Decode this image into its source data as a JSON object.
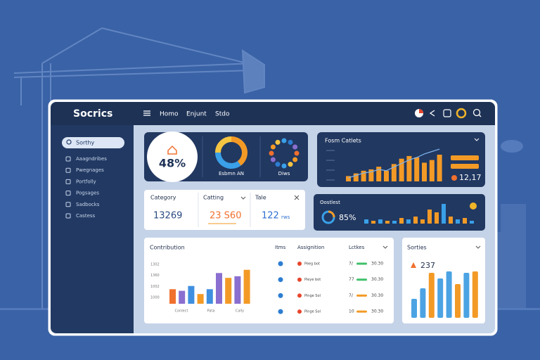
{
  "header": {
    "brand": "Socrics",
    "nav": [
      "Homo",
      "Enjunt",
      "Stdo"
    ]
  },
  "sidebar": {
    "search": "Sorthy",
    "items": [
      "Aaagndribes",
      "Pwegnages",
      "Portfolly",
      "Pogsages",
      "Sadbocks",
      "Castess"
    ]
  },
  "kpi_card": {
    "percent": "48%",
    "donut_label": "Esbmn AN",
    "donut": [
      40,
      35,
      25
    ],
    "ring_label": "Diws"
  },
  "forecast_card": {
    "title": "Fosm Catlets",
    "total": "12,17",
    "bars": [
      8,
      12,
      16,
      18,
      22,
      16,
      26,
      34,
      38,
      36,
      28,
      32,
      40
    ],
    "line": [
      6,
      10,
      14,
      16,
      20,
      18,
      24,
      30,
      36,
      40,
      46,
      50,
      54
    ]
  },
  "stats_card": {
    "columns": [
      {
        "label": "Category",
        "value": "13269"
      },
      {
        "label": "Catting",
        "value": "23 S60"
      },
      {
        "label": "Tale",
        "value": "122",
        "unit": "rws"
      }
    ]
  },
  "overview_card": {
    "title": "Oostlest",
    "percent": "85%",
    "bars": [
      6,
      4,
      6,
      4,
      4,
      8,
      6,
      10,
      6,
      20,
      16,
      28,
      10,
      6,
      8,
      4
    ],
    "colors": [
      "#3aa0e8",
      "#f39a26",
      "#3aa0e8",
      "#f39a26",
      "#3aa0e8",
      "#f39a26",
      "#3aa0e8",
      "#f39a26",
      "#f39a26",
      "#f39a26",
      "#f39a26",
      "#3aa0e8",
      "#f39a26",
      "#3aa0e8",
      "#f39a26",
      "#3aa0e8"
    ]
  },
  "contribution": {
    "title": "Contribution",
    "y_labels": [
      "1302",
      "1360",
      "1002",
      "1000"
    ],
    "x_labels": [
      "Conlect",
      "Pata",
      "Cally"
    ],
    "bars": [
      18,
      16,
      22,
      12,
      18,
      38,
      32,
      34,
      42
    ],
    "colors": [
      "#f0702e",
      "#8a6fd0",
      "#3f8fe0",
      "#f39a26",
      "#3f8fe0",
      "#8a6fd0",
      "#f39a26",
      "#8a6fd0",
      "#f39a26"
    ]
  },
  "table": {
    "headers": [
      "Itms",
      "Assignition",
      "Lctkes"
    ],
    "rows": [
      [
        "Peeg bot",
        "7/",
        "30.30"
      ],
      [
        "Pieye bot",
        "77",
        "30.30"
      ],
      [
        "Pinge Sol",
        "7/",
        "30.30"
      ],
      [
        "Pinge Sol",
        "10",
        "30.30"
      ]
    ]
  },
  "sorties": {
    "title": "Sorties",
    "value": "237",
    "bars": [
      27,
      42,
      64,
      56,
      66,
      48,
      64,
      66
    ],
    "colors": [
      "#4ba3e3",
      "#4ba3e3",
      "#f39a26",
      "#4ba3e3",
      "#4ba3e3",
      "#f39a26",
      "#4ba3e3",
      "#f39a26"
    ]
  }
}
